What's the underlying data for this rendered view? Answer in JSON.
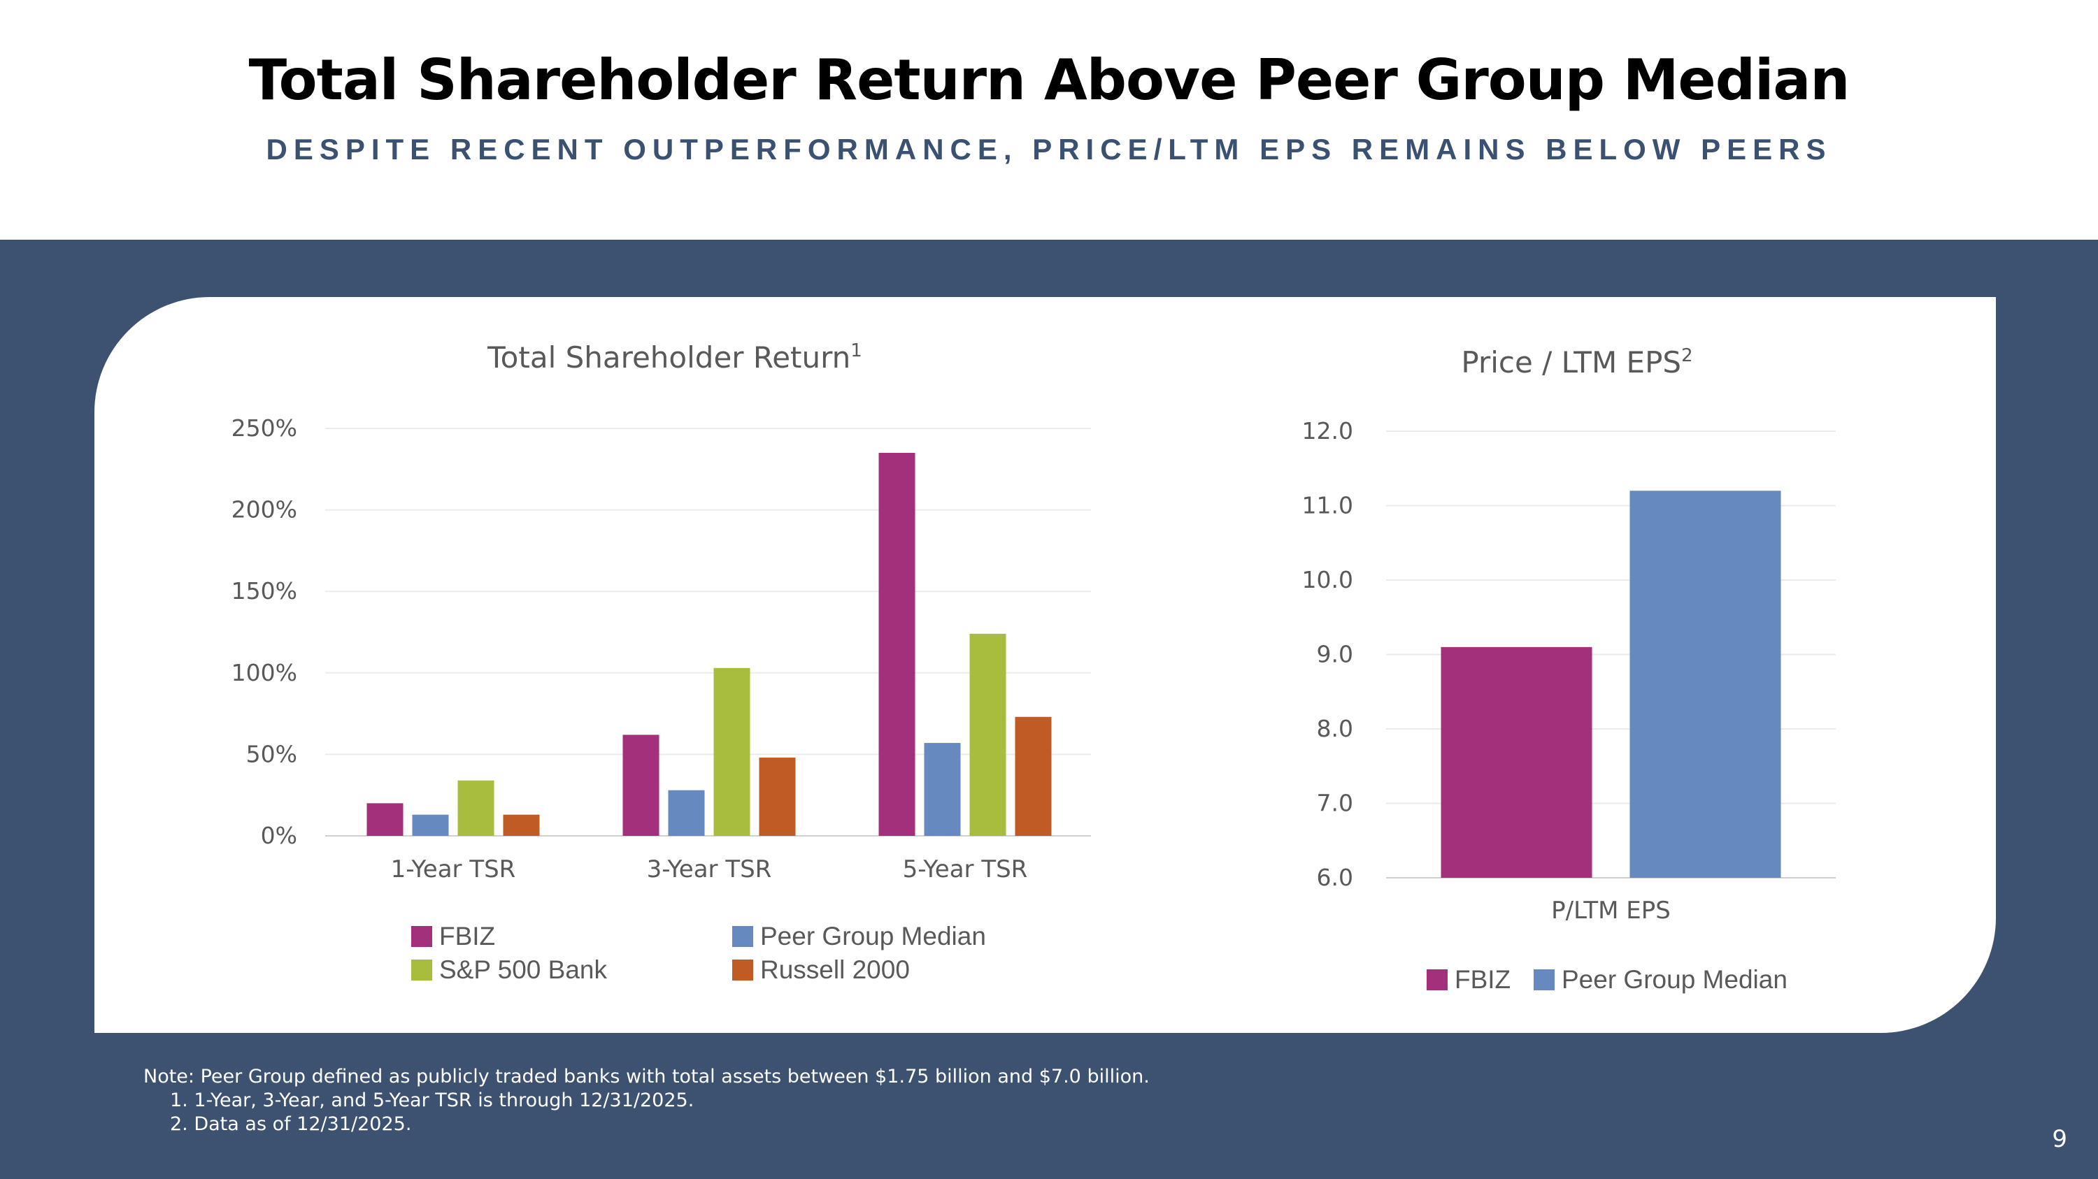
{
  "slide": {
    "title": "Total Shareholder Return Above Peer Group Median",
    "subtitle": "DESPITE RECENT OUTPERFORMANCE, PRICE/LTM EPS REMAINS BELOW PEERS",
    "notes": [
      "Note: Peer Group defined as publicly traded banks with total assets between $1.75 billion and $7.0 billion.",
      "1.   1-Year, 3-Year, and 5-Year TSR is through 12/31/2025.",
      "2.  Data as of 12/31/2025."
    ],
    "page_number": "9"
  },
  "colors": {
    "fbiz": "#a3307a",
    "peer": "#6689bf",
    "sp500": "#a8bd3e",
    "russell": "#c05b26",
    "band": "#3d5170"
  },
  "chart_data": [
    {
      "type": "bar",
      "title": "Total Shareholder Return",
      "title_sup": "1",
      "categories": [
        "1-Year TSR",
        "3-Year TSR",
        "5-Year TSR"
      ],
      "series": [
        {
          "name": "FBIZ",
          "color": "#a3307a",
          "values": [
            20,
            62,
            235
          ]
        },
        {
          "name": "Peer Group Median",
          "color": "#6689bf",
          "values": [
            13,
            28,
            57
          ]
        },
        {
          "name": "S&P 500 Bank",
          "color": "#a8bd3e",
          "values": [
            34,
            103,
            124
          ]
        },
        {
          "name": "Russell 2000",
          "color": "#c05b26",
          "values": [
            13,
            48,
            73
          ]
        }
      ],
      "ylim": [
        0,
        250
      ],
      "yticks": [
        "0%",
        "50%",
        "100%",
        "150%",
        "200%",
        "250%"
      ],
      "xlabel": "",
      "ylabel": "",
      "legend": "bottom"
    },
    {
      "type": "bar",
      "title": "Price / LTM EPS",
      "title_sup": "2",
      "categories": [
        "P/LTM EPS"
      ],
      "series": [
        {
          "name": "FBIZ",
          "color": "#a3307a",
          "values": [
            9.1
          ]
        },
        {
          "name": "Peer Group Median",
          "color": "#6689bf",
          "values": [
            11.2
          ]
        }
      ],
      "ylim": [
        6.0,
        12.0
      ],
      "yticks": [
        "6.0",
        "7.0",
        "8.0",
        "9.0",
        "10.0",
        "11.0",
        "12.0"
      ],
      "xlabel": "",
      "ylabel": "",
      "legend": "bottom"
    }
  ]
}
